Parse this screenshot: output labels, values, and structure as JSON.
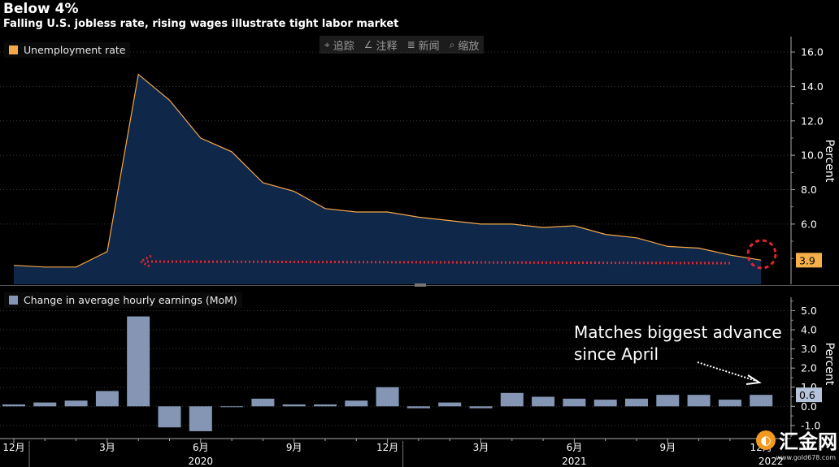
{
  "header": {
    "title": "Below 4%",
    "subtitle": "Falling U.S. jobless rate, rising wages illustrate tight labor market"
  },
  "toolbar": {
    "items": [
      {
        "label": "追踪",
        "icon": "crosshair-icon"
      },
      {
        "label": "注释",
        "icon": "pencil-icon"
      },
      {
        "label": "新闻",
        "icon": "news-icon"
      },
      {
        "label": "缩放",
        "icon": "zoom-icon"
      }
    ]
  },
  "watermark": {
    "text": "汇金网",
    "url": "www.gold678.com"
  },
  "colors": {
    "unemployment_line": "#f5a84a",
    "unemployment_fill": "#0f2748",
    "earnings_bar": "#8596b5",
    "arrow": "#e0262e",
    "value_badge_top": "#f6b04a",
    "value_badge_bottom": "#b4c2da"
  },
  "chart_data": [
    {
      "type": "area",
      "legend": "Unemployment rate",
      "ylabel": "Percent",
      "ylim": [
        2.5,
        16.9
      ],
      "y_ticks": [
        "6.0",
        "8.0",
        "10.0",
        "12.0",
        "14.0",
        "16.0"
      ],
      "x": [
        "2019-12",
        "2020-01",
        "2020-02",
        "2020-03",
        "2020-04",
        "2020-05",
        "2020-06",
        "2020-07",
        "2020-08",
        "2020-09",
        "2020-10",
        "2020-11",
        "2020-12",
        "2021-01",
        "2021-02",
        "2021-03",
        "2021-04",
        "2021-05",
        "2021-06",
        "2021-07",
        "2021-08",
        "2021-09",
        "2021-10",
        "2021-11",
        "2021-12"
      ],
      "values": [
        3.6,
        3.5,
        3.5,
        4.4,
        14.7,
        13.2,
        11.0,
        10.2,
        8.4,
        7.9,
        6.9,
        6.7,
        6.7,
        6.4,
        6.2,
        6.0,
        6.0,
        5.8,
        5.9,
        5.4,
        5.2,
        4.7,
        4.6,
        4.2,
        3.9
      ],
      "last_value_label": "3.9",
      "annotation": "dashed arrow back to the 2019 level, circled latest value"
    },
    {
      "type": "bar",
      "legend": "Change in average hourly earnings (MoM)",
      "ylabel": "Percent",
      "ylim": [
        -1.6,
        5.7
      ],
      "y_ticks": [
        "-1.0",
        "0.0",
        "1.0",
        "2.0",
        "3.0",
        "4.0",
        "5.0"
      ],
      "x": [
        "2019-12",
        "2020-01",
        "2020-02",
        "2020-03",
        "2020-04",
        "2020-05",
        "2020-06",
        "2020-07",
        "2020-08",
        "2020-09",
        "2020-10",
        "2020-11",
        "2020-12",
        "2021-01",
        "2021-02",
        "2021-03",
        "2021-04",
        "2021-05",
        "2021-06",
        "2021-07",
        "2021-08",
        "2021-09",
        "2021-10",
        "2021-11",
        "2021-12"
      ],
      "values": [
        0.1,
        0.2,
        0.3,
        0.8,
        4.7,
        -1.1,
        -1.3,
        0.0,
        0.4,
        0.1,
        0.1,
        0.3,
        1.0,
        -0.1,
        0.2,
        -0.1,
        0.7,
        0.5,
        0.4,
        0.35,
        0.4,
        0.6,
        0.6,
        0.35,
        0.6
      ],
      "last_value_label": "0.6",
      "annotation": "Matches biggest advance since April"
    }
  ],
  "x_axis": {
    "month_labels": [
      "12月",
      "3月",
      "6月",
      "9月",
      "12月",
      "3月",
      "6月",
      "9月",
      "12月"
    ],
    "year_labels": [
      "2020",
      "2021",
      "2022"
    ]
  }
}
